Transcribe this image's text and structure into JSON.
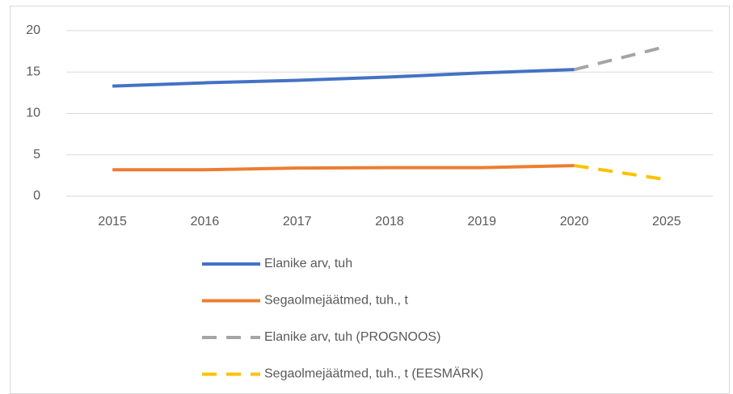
{
  "chart_data": {
    "type": "line",
    "categories": [
      "2015",
      "2016",
      "2017",
      "2018",
      "2019",
      "2020",
      "2025"
    ],
    "series": [
      {
        "name": "Elanike arv, tuh",
        "color": "#4472c4",
        "dashed": false,
        "values": [
          13.3,
          13.7,
          14.0,
          14.4,
          14.9,
          15.3,
          null
        ]
      },
      {
        "name": "Segaolmejäätmed, tuh., t",
        "color": "#ed7d31",
        "dashed": false,
        "values": [
          3.2,
          3.2,
          3.4,
          3.45,
          3.45,
          3.7,
          null
        ]
      },
      {
        "name": "Elanike arv, tuh (PROGNOOS)",
        "color": "#a5a5a5",
        "dashed": true,
        "values": [
          null,
          null,
          null,
          null,
          null,
          15.3,
          18.1
        ]
      },
      {
        "name": "Segaolmejäätmed, tuh., t (EESMÄRK)",
        "color": "#ffc000",
        "dashed": true,
        "values": [
          null,
          null,
          null,
          null,
          null,
          3.7,
          2.0
        ]
      }
    ],
    "ylim": [
      0,
      20
    ],
    "yticks": [
      0,
      5,
      10,
      15,
      20
    ],
    "grid": true,
    "legend": "bottom"
  }
}
